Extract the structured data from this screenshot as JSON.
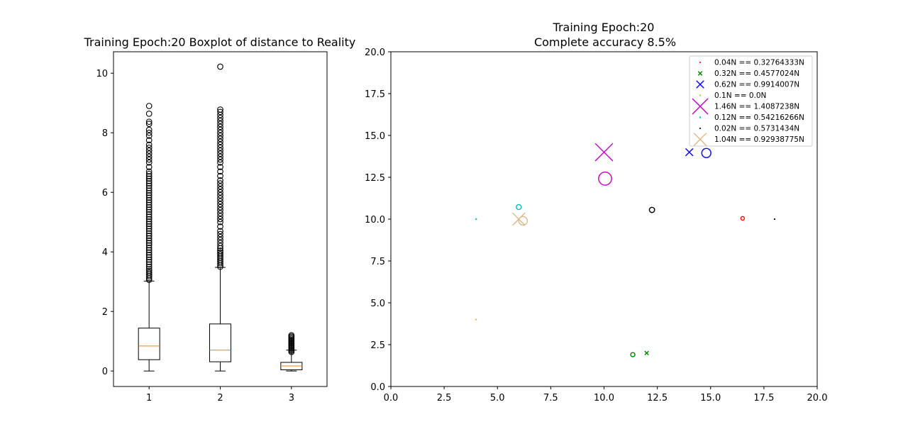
{
  "chart_data": [
    {
      "type": "box",
      "title": "Training Epoch:20 Boxplot of distance to Reality",
      "categories": [
        "1",
        "2",
        "3"
      ],
      "ylim": [
        -0.52,
        10.72
      ],
      "yticks": [
        0,
        2,
        4,
        6,
        8,
        10
      ],
      "boxes": [
        {
          "whisker_low": 0.0,
          "q1": 0.38,
          "median": 0.84,
          "q3": 1.44,
          "whisker_high": 3.02,
          "outliers": [
            3.06,
            3.12,
            3.18,
            3.24,
            3.3,
            3.36,
            3.42,
            3.5,
            3.58,
            3.66,
            3.74,
            3.82,
            3.9,
            3.98,
            4.06,
            4.14,
            4.22,
            4.3,
            4.38,
            4.46,
            4.54,
            4.62,
            4.7,
            4.78,
            4.86,
            4.94,
            5.02,
            5.1,
            5.18,
            5.26,
            5.34,
            5.42,
            5.5,
            5.58,
            5.66,
            5.74,
            5.82,
            5.9,
            5.98,
            6.06,
            6.14,
            6.22,
            6.3,
            6.38,
            6.46,
            6.54,
            6.62,
            6.7,
            6.85,
            7.0,
            7.1,
            7.2,
            7.3,
            7.4,
            7.5,
            7.6,
            7.75,
            7.9,
            8.0,
            8.1,
            8.3,
            8.37,
            8.64,
            8.9
          ]
        },
        {
          "whisker_low": 0.0,
          "q1": 0.31,
          "median": 0.7,
          "q3": 1.58,
          "whisker_high": 3.48,
          "outliers": [
            3.5,
            3.56,
            3.62,
            3.68,
            3.74,
            3.8,
            3.86,
            3.92,
            3.98,
            4.04,
            4.12,
            4.2,
            4.3,
            4.4,
            4.5,
            4.6,
            4.7,
            4.85,
            5.0,
            5.1,
            5.2,
            5.3,
            5.4,
            5.5,
            5.6,
            5.7,
            5.8,
            5.9,
            6.0,
            6.1,
            6.2,
            6.3,
            6.4,
            6.55,
            6.7,
            6.85,
            7.0,
            7.1,
            7.2,
            7.3,
            7.4,
            7.5,
            7.6,
            7.7,
            7.8,
            7.9,
            8.0,
            8.1,
            8.2,
            8.3,
            8.4,
            8.5,
            8.6,
            8.7,
            8.78,
            10.22
          ]
        },
        {
          "whisker_low": 0.0,
          "q1": 0.04,
          "median": 0.17,
          "q3": 0.29,
          "whisker_high": 0.7,
          "outliers": [
            0.64,
            0.68,
            0.72,
            0.76,
            0.8,
            0.84,
            0.88,
            0.92,
            0.96,
            1.0,
            1.04,
            1.08,
            1.12,
            1.16,
            1.2
          ]
        }
      ]
    },
    {
      "type": "scatter",
      "title": "Training Epoch:20",
      "subtitle": "Complete accuracy 8.5%",
      "xlim": [
        0,
        20
      ],
      "ylim": [
        0,
        20
      ],
      "xticks": [
        "0.0",
        "2.5",
        "5.0",
        "7.5",
        "10.0",
        "12.5",
        "15.0",
        "17.5",
        "20.0"
      ],
      "yticks": [
        "0.0",
        "2.5",
        "5.0",
        "7.5",
        "10.0",
        "12.5",
        "15.0",
        "17.5",
        "20.0"
      ],
      "series": [
        {
          "name": "0.04N == 0.32764333N",
          "color": "#ff0000",
          "x_marker": [
            18.0,
            10.0
          ],
          "o_marker": [
            16.5,
            10.05
          ],
          "x_size": 0.04,
          "o_size": 0.3276
        },
        {
          "name": "0.32N == 0.4577024N",
          "color": "#008000",
          "x_marker": [
            12.0,
            2.0
          ],
          "o_marker": [
            11.35,
            1.9
          ],
          "x_size": 0.32,
          "o_size": 0.4577
        },
        {
          "name": "0.62N == 0.9914007N",
          "color": "#0000ff",
          "x_marker": [
            14.0,
            14.0
          ],
          "o_marker": [
            14.8,
            13.95
          ],
          "x_size": 0.62,
          "o_size": 0.9914
        },
        {
          "name": "0.1N == 0.0N",
          "color": "#bfbf00",
          "x_marker": [
            4.0,
            4.0
          ],
          "o_marker": null,
          "x_size": 0.1,
          "o_size": 0.0
        },
        {
          "name": "1.46N == 1.4087238N",
          "color": "#bf00bf",
          "x_marker": [
            10.0,
            14.0
          ],
          "o_marker": [
            10.05,
            12.42
          ],
          "x_size": 1.46,
          "o_size": 1.4087
        },
        {
          "name": "0.12N == 0.54216266N",
          "color": "#00bfbf",
          "x_marker": [
            4.0,
            10.0
          ],
          "o_marker": [
            6.0,
            10.72
          ],
          "x_size": 0.12,
          "o_size": 0.5422
        },
        {
          "name": "0.02N == 0.5731434N",
          "color": "#000000",
          "x_marker": [
            18.0,
            10.0
          ],
          "o_marker": [
            12.25,
            10.55
          ],
          "x_size": 0.02,
          "o_size": 0.5731
        },
        {
          "name": "1.04N == 0.92938775N",
          "color": "#deb887",
          "x_marker": [
            6.0,
            10.0
          ],
          "o_marker": [
            6.2,
            9.9
          ],
          "x_size": 1.04,
          "o_size": 0.9294
        }
      ]
    }
  ]
}
